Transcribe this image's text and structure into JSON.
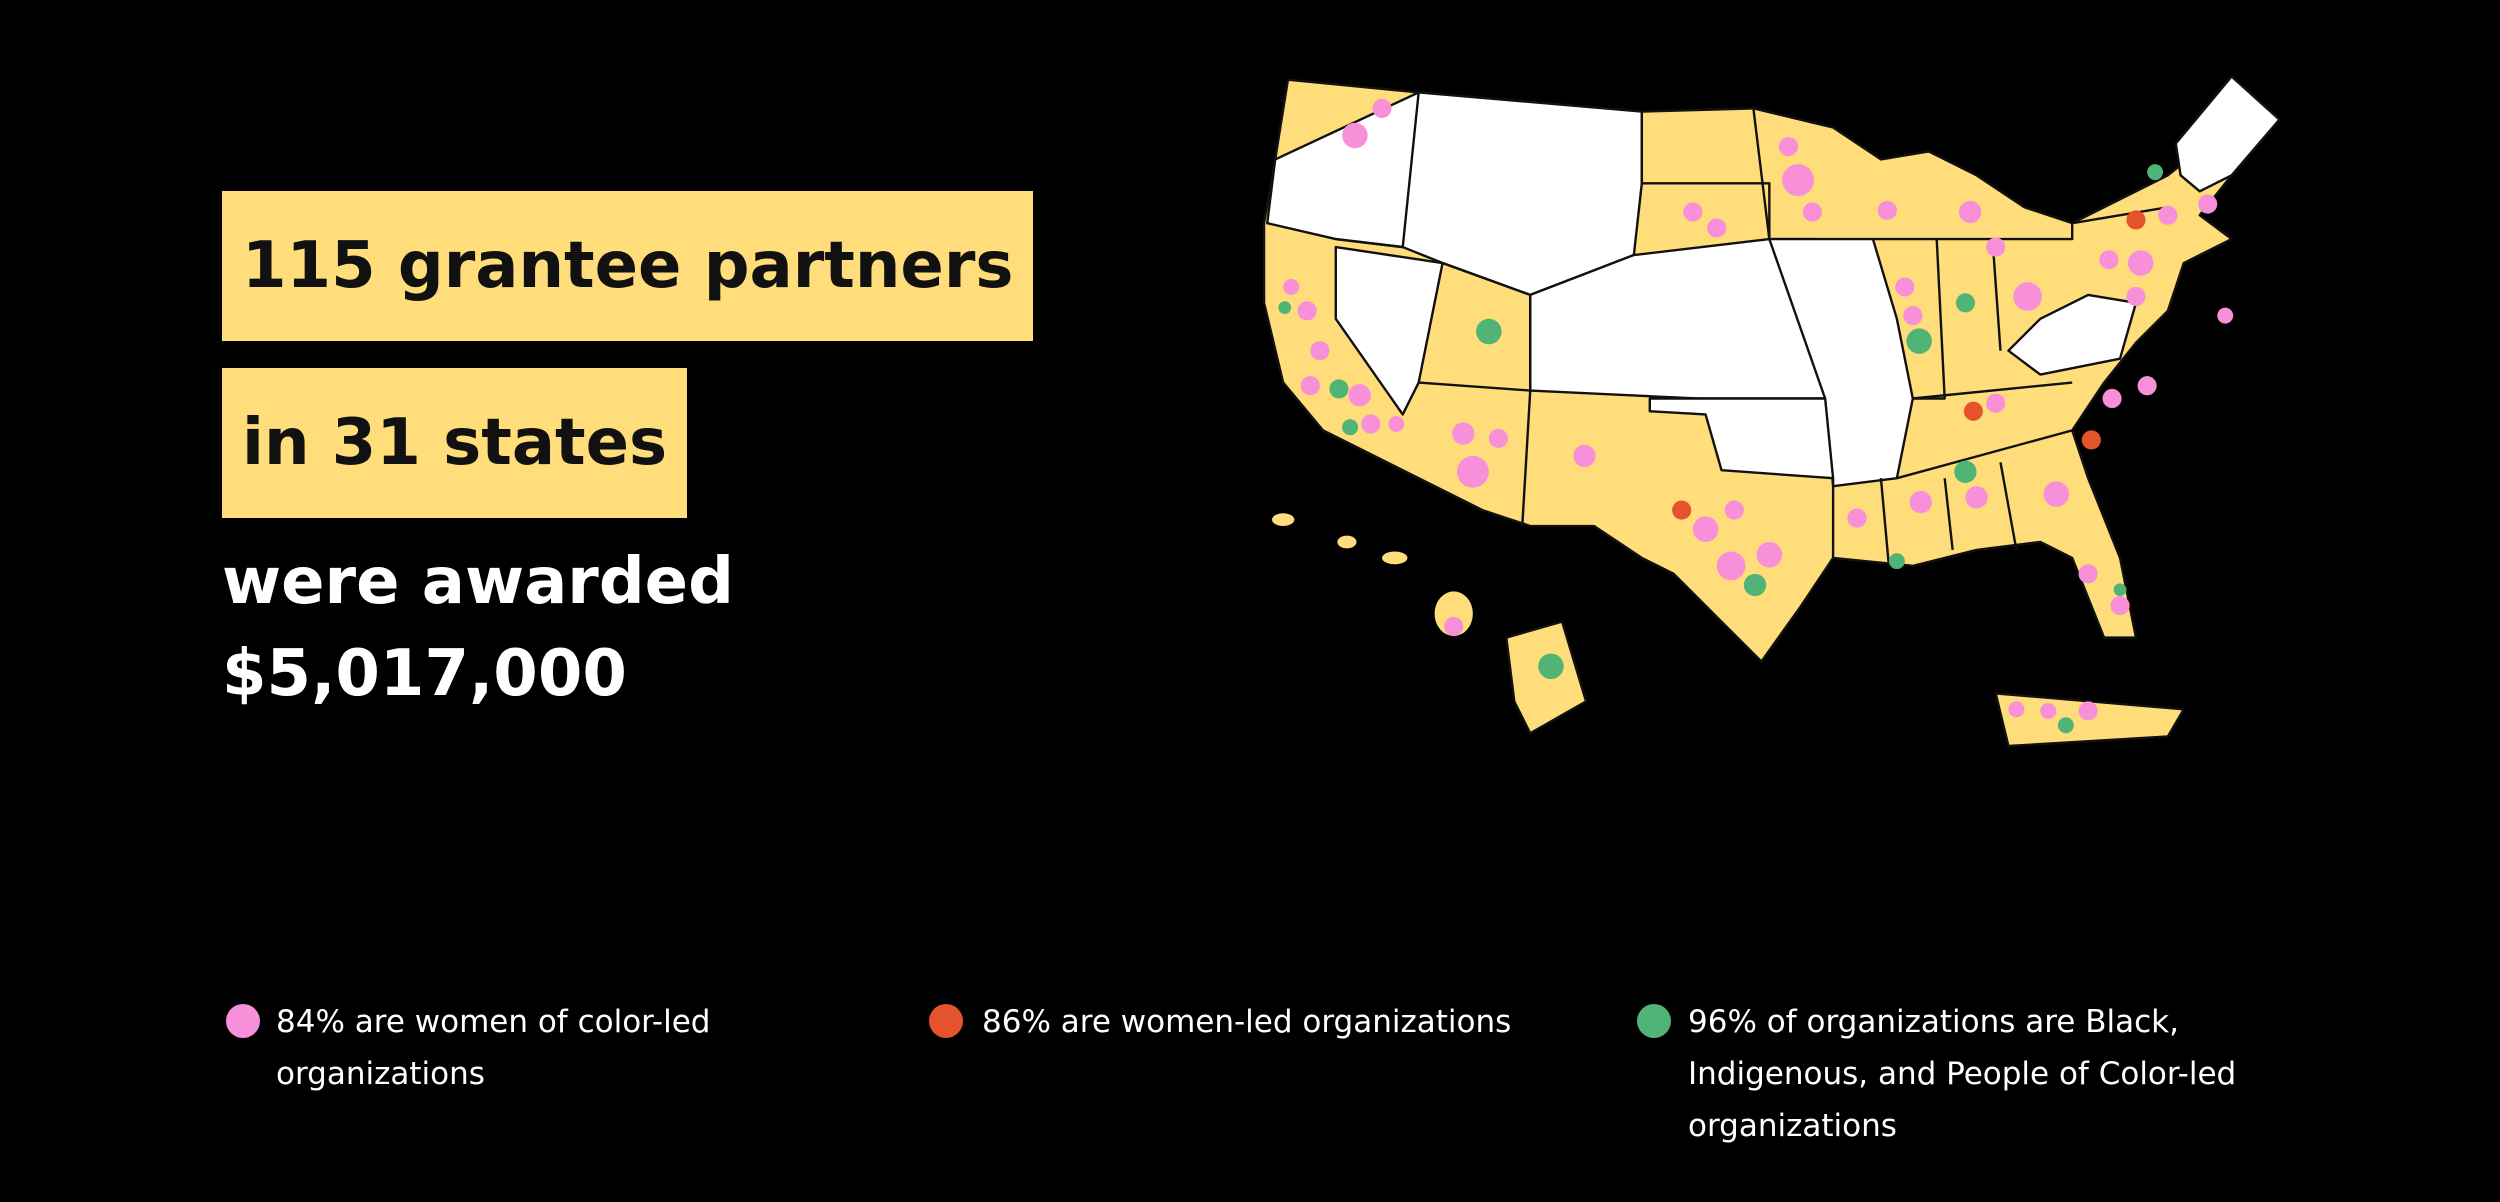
{
  "headline": {
    "highlighted": [
      "115 grantee partners",
      "in 31 states"
    ],
    "lines": [
      "were awarded",
      "$5,017,000"
    ]
  },
  "legend": {
    "items": [
      "84% are women of color-led organizations",
      "86% are women-led organizations",
      "96% of organizations are Black, Indigenous, and People of Color-led organizations"
    ]
  }
}
